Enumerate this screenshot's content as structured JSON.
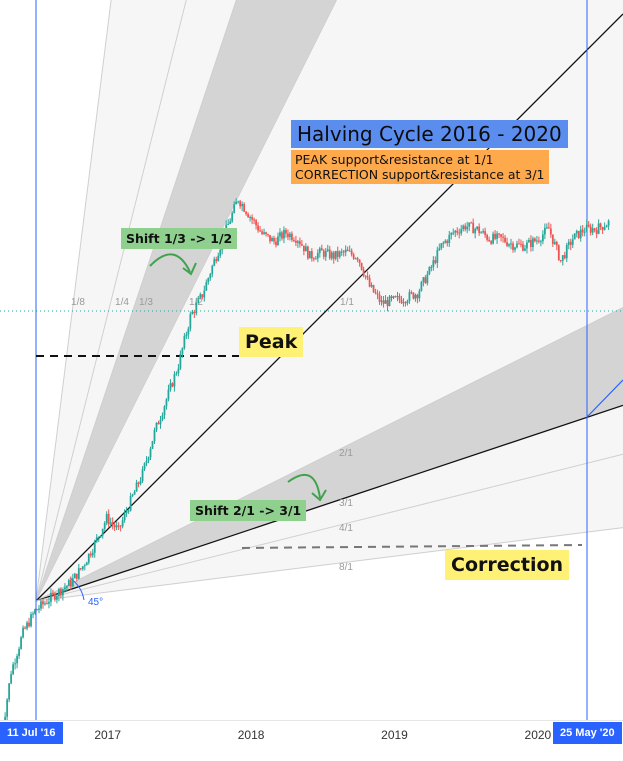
{
  "annotations": {
    "title": "Halving Cycle 2016 - 2020",
    "peak_line": "PEAK support&resistance at 1/1",
    "correction_line": "CORRECTION support&resistance at 3/1",
    "shift_top": "Shift 1/3 -> 1/2",
    "shift_bottom": "Shift 2/1 -> 3/1",
    "peak": "Peak",
    "correction": "Correction",
    "angle": "45°"
  },
  "markers": {
    "start": "11 Jul '16",
    "end": "25 May '20"
  },
  "colors": {
    "accent": "#2962ff",
    "candle_up": "#26a69a",
    "candle_down": "#ef5350",
    "title_bg": "#5b8def",
    "subtitle_bg": "#ffa94d",
    "note_green": "#8fd08f",
    "note_yellow": "#fff176",
    "fan_fill": "#c8c8c8",
    "dotted_level": "#26a69a"
  },
  "chart_data": {
    "type": "candlestick",
    "title": "Halving Cycle 2016 - 2020",
    "xlabel": "",
    "ylabel": "",
    "x_ticks": [
      "2017",
      "2018",
      "2019",
      "2020"
    ],
    "x_range": [
      "2016-04",
      "2020-07"
    ],
    "y_scale": "log",
    "grid": false,
    "gann_fan": {
      "origin": "2016-07-11",
      "ratios": [
        "1/8",
        "1/4",
        "1/3",
        "1/2",
        "1/1",
        "2/1",
        "3/1",
        "4/1",
        "8/1"
      ],
      "shaded_bands": [
        [
          "1/3",
          "1/2"
        ],
        [
          "2/1",
          "3/1"
        ]
      ],
      "angle": "45°"
    },
    "series": [
      {
        "points": [
          [
            "2016-04",
            15
          ],
          [
            "2016-05",
            24
          ],
          [
            "2016-06",
            30
          ],
          [
            "2016-07",
            34
          ],
          [
            "2016-08",
            36
          ],
          [
            "2016-09",
            38
          ],
          [
            "2016-10",
            40
          ],
          [
            "2016-11",
            44
          ],
          [
            "2016-12",
            50
          ],
          [
            "2017-01",
            58
          ],
          [
            "2017-02",
            54
          ],
          [
            "2017-03",
            64
          ],
          [
            "2017-04",
            75
          ],
          [
            "2017-05",
            95
          ],
          [
            "2017-06",
            115
          ],
          [
            "2017-07",
            140
          ],
          [
            "2017-08",
            185
          ],
          [
            "2017-09",
            210
          ],
          [
            "2017-10",
            255
          ],
          [
            "2017-11",
            305
          ],
          [
            "2017-12",
            365
          ],
          [
            "2018-01",
            330
          ],
          [
            "2018-02",
            298
          ],
          [
            "2018-03",
            285
          ],
          [
            "2018-04",
            300
          ],
          [
            "2018-05",
            290
          ],
          [
            "2018-06",
            262
          ],
          [
            "2018-07",
            268
          ],
          [
            "2018-08",
            262
          ],
          [
            "2018-09",
            268
          ],
          [
            "2018-10",
            262
          ],
          [
            "2018-11",
            220
          ],
          [
            "2018-12",
            200
          ],
          [
            "2019-01",
            203
          ],
          [
            "2019-02",
            206
          ],
          [
            "2019-03",
            212
          ],
          [
            "2019-04",
            240
          ],
          [
            "2019-05",
            278
          ],
          [
            "2019-06",
            300
          ],
          [
            "2019-07",
            312
          ],
          [
            "2019-08",
            306
          ],
          [
            "2019-09",
            290
          ],
          [
            "2019-10",
            290
          ],
          [
            "2019-11",
            280
          ],
          [
            "2019-12",
            278
          ],
          [
            "2020-01",
            288
          ],
          [
            "2020-02",
            307
          ],
          [
            "2020-03",
            255
          ],
          [
            "2020-04",
            290
          ],
          [
            "2020-05",
            306
          ],
          [
            "2020-06",
            307
          ],
          [
            "2020-07",
            318
          ]
        ]
      }
    ]
  }
}
